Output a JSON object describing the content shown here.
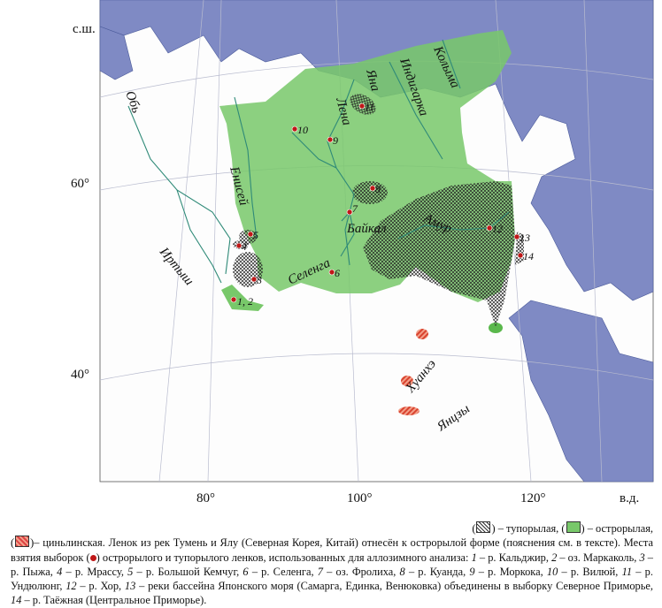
{
  "map": {
    "axis": {
      "lat_label": "с.ш.",
      "lon_label": "в.д.",
      "lat_ticks": [
        "60°",
        "40°"
      ],
      "lon_ticks": [
        "80°",
        "100°",
        "120°"
      ]
    },
    "rivers": {
      "ob": "Обь",
      "irtysh": "Иртыш",
      "yenisei": "Енисей",
      "lena": "Лена",
      "yana": "Яна",
      "indigirka": "Индигарка",
      "kolyma": "Колыма",
      "baikal": "Байкал",
      "amur": "Амур",
      "selenga": "Селенга",
      "huanghe": "Хуанхэ",
      "yangtze": "Янцзы"
    },
    "sites": [
      "1, 2",
      "3",
      "4",
      "5",
      "6",
      "7",
      "8",
      "9",
      "10",
      "11",
      "12",
      "13",
      "14"
    ],
    "colors": {
      "sea": "#7f8ac4",
      "sharp_snouted": "#78c86a",
      "site_marker": "#c01818",
      "qinling": "#e0553f"
    }
  },
  "caption": {
    "legend_blunt": "– тупорылая,",
    "legend_sharp": "– острорылая,",
    "legend_qinling": "– циньлинская.",
    "text1": "Ленок из рек Тумень и Ялу (Северная Корея, Китай) отнесён к острорылой форме (пояснения см. в тексте). Места взятия выборок (",
    "text2": ") острорылого и тупорылого ленков, использованных для аллозимного анализа:",
    "sites": [
      {
        "n": "1",
        "t": "– р. Кальджир,"
      },
      {
        "n": "2",
        "t": "– оз. Маркаколь,"
      },
      {
        "n": "3",
        "t": "– р. Пыжа,"
      },
      {
        "n": "4",
        "t": "– р. Мрассу,"
      },
      {
        "n": "5",
        "t": "– р. Большой Кемчуг,"
      },
      {
        "n": "6",
        "t": "– р. Селенга,"
      },
      {
        "n": "7",
        "t": "– оз. Фролиха,"
      },
      {
        "n": "8",
        "t": "– р. Куанда,"
      },
      {
        "n": "9",
        "t": "– р. Моркока,"
      },
      {
        "n": "10",
        "t": "– р. Вилюй,"
      },
      {
        "n": "11",
        "t": "– р. Ундюлюнг,"
      },
      {
        "n": "12",
        "t": "– р. Хор,"
      },
      {
        "n": "13",
        "t": "– реки бассейна Японского моря (Самарга, Единка, Венюковка) объединены в выборку Северное Приморье,"
      },
      {
        "n": "14",
        "t": "– р. Таёжная (Центральное Приморье)."
      }
    ]
  }
}
